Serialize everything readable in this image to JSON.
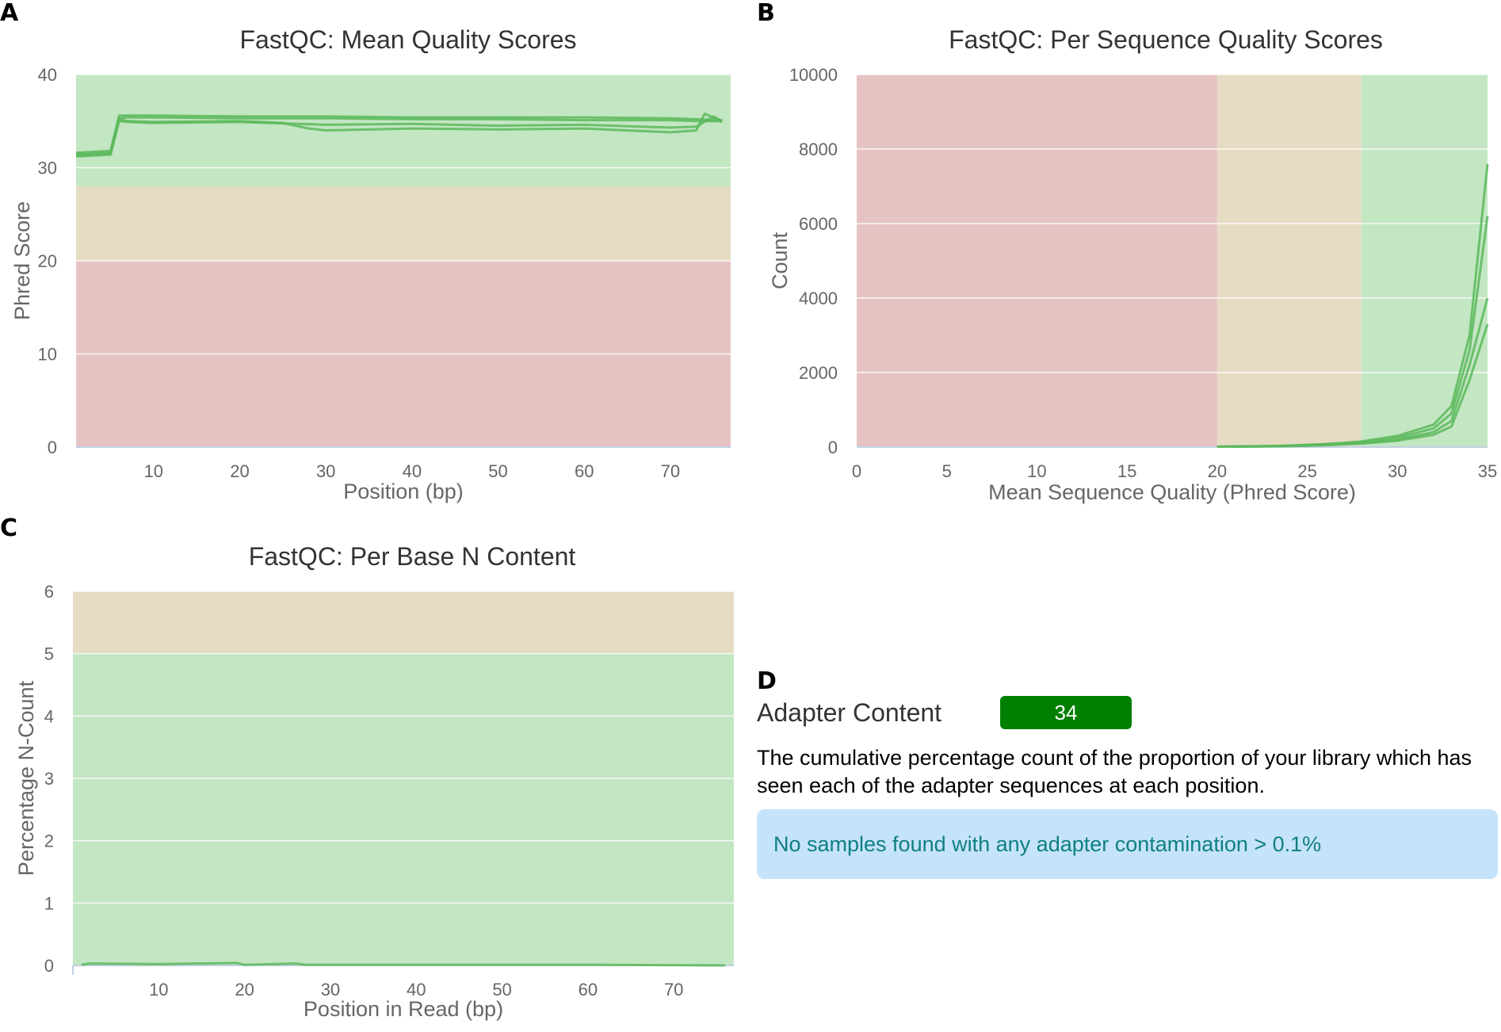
{
  "panels": {
    "a": "A",
    "b": "B",
    "c": "C",
    "d": "D"
  },
  "colors": {
    "good": "#c3e6c3",
    "warn": "#e6dcc3",
    "fail": "#e6c3c3",
    "line": "#5cb85c"
  },
  "chart_data": [
    {
      "id": "mean_quality",
      "type": "line",
      "title": "FastQC: Mean Quality Scores",
      "xlabel": "Position (bp)",
      "ylabel": "Phred Score",
      "xlim": [
        1,
        77
      ],
      "ylim": [
        0,
        40
      ],
      "xticks": [
        10,
        20,
        30,
        40,
        50,
        60,
        70
      ],
      "yticks": [
        0,
        10,
        20,
        30,
        40
      ],
      "bands": [
        {
          "from": 28,
          "to": 40,
          "zone": "good"
        },
        {
          "from": 20,
          "to": 28,
          "zone": "warn"
        },
        {
          "from": 0,
          "to": 20,
          "zone": "fail"
        }
      ],
      "series": [
        {
          "name": "s1",
          "x": [
            1,
            5,
            6,
            7,
            10,
            20,
            30,
            40,
            50,
            60,
            70,
            73,
            76
          ],
          "y": [
            31.3,
            31.5,
            35.3,
            35.4,
            35.4,
            35.3,
            35.3,
            35.2,
            35.2,
            35.1,
            35.1,
            35.0,
            35.0
          ]
        },
        {
          "name": "s2",
          "x": [
            1,
            5,
            6,
            7,
            10,
            20,
            30,
            40,
            50,
            60,
            70,
            73,
            76
          ],
          "y": [
            31.6,
            31.8,
            35.6,
            35.6,
            35.6,
            35.5,
            35.5,
            35.4,
            35.4,
            35.4,
            35.3,
            35.2,
            35.1
          ]
        },
        {
          "name": "s3",
          "x": [
            1,
            5,
            6,
            7,
            10,
            20,
            25,
            28,
            30,
            40,
            50,
            60,
            70,
            73,
            74,
            76
          ],
          "y": [
            31.5,
            31.6,
            35.2,
            35.0,
            34.9,
            35.0,
            34.8,
            34.2,
            34.0,
            34.2,
            34.1,
            34.2,
            33.8,
            34.0,
            35.8,
            34.9
          ]
        },
        {
          "name": "s4",
          "x": [
            1,
            5,
            6,
            7,
            10,
            20,
            30,
            40,
            50,
            60,
            70,
            73,
            75,
            76
          ],
          "y": [
            31.2,
            31.4,
            35.0,
            34.9,
            34.8,
            34.9,
            34.6,
            34.7,
            34.5,
            34.6,
            34.3,
            34.4,
            35.5,
            35.0
          ]
        }
      ]
    },
    {
      "id": "per_sequence_quality",
      "type": "line",
      "title": "FastQC: Per Sequence Quality Scores",
      "xlabel": "Mean Sequence Quality (Phred Score)",
      "ylabel": "Count",
      "xlim": [
        0,
        35
      ],
      "ylim": [
        0,
        10000
      ],
      "xticks": [
        0,
        5,
        10,
        15,
        20,
        25,
        30,
        35
      ],
      "yticks": [
        0,
        2000,
        4000,
        6000,
        8000,
        10000
      ],
      "bands": [
        {
          "from": 0,
          "to": 20,
          "zone": "fail"
        },
        {
          "from": 20,
          "to": 28,
          "zone": "warn"
        },
        {
          "from": 28,
          "to": 35,
          "zone": "good"
        }
      ],
      "series": [
        {
          "name": "s1",
          "x": [
            20,
            22,
            24,
            26,
            28,
            30,
            32,
            33,
            34,
            35
          ],
          "y": [
            10,
            20,
            40,
            80,
            150,
            300,
            600,
            1100,
            3000,
            7600
          ]
        },
        {
          "name": "s2",
          "x": [
            20,
            22,
            24,
            26,
            28,
            30,
            32,
            33,
            34,
            35
          ],
          "y": [
            10,
            20,
            35,
            70,
            130,
            250,
            500,
            900,
            2600,
            6200
          ]
        },
        {
          "name": "s3",
          "x": [
            20,
            22,
            24,
            26,
            28,
            30,
            32,
            33,
            34,
            35
          ],
          "y": [
            10,
            15,
            30,
            60,
            110,
            200,
            400,
            700,
            2200,
            4000
          ]
        },
        {
          "name": "s4",
          "x": [
            20,
            22,
            24,
            26,
            28,
            30,
            32,
            33,
            34,
            35
          ],
          "y": [
            10,
            15,
            25,
            50,
            90,
            170,
            330,
            550,
            1800,
            3300
          ]
        }
      ]
    },
    {
      "id": "per_base_n",
      "type": "line",
      "title": "FastQC: Per Base N Content",
      "xlabel": "Position in Read (bp)",
      "ylabel": "Percentage N-Count",
      "xlim": [
        0,
        77
      ],
      "ylim": [
        0,
        6
      ],
      "xticks": [
        10,
        20,
        30,
        40,
        50,
        60,
        70
      ],
      "yticks": [
        0,
        1,
        2,
        3,
        4,
        5,
        6
      ],
      "bands": [
        {
          "from": 5,
          "to": 6,
          "zone": "warn"
        },
        {
          "from": 0,
          "to": 5,
          "zone": "good"
        }
      ],
      "series": [
        {
          "name": "s1",
          "x": [
            1,
            2,
            10,
            19,
            20,
            26,
            27,
            40,
            60,
            76
          ],
          "y": [
            0.01,
            0.03,
            0.02,
            0.04,
            0.01,
            0.03,
            0.01,
            0.01,
            0.01,
            0.0
          ]
        }
      ]
    }
  ],
  "adapter": {
    "title": "Adapter Content",
    "badge": "34",
    "description": "The cumulative percentage count of the proportion of your library which has seen each of the adapter sequences at each position.",
    "notice": "No samples found with any adapter contamination > 0.1%"
  }
}
